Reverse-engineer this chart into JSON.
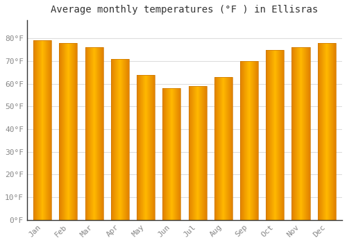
{
  "title": "Average monthly temperatures (°F ) in Ellisras",
  "months": [
    "Jan",
    "Feb",
    "Mar",
    "Apr",
    "May",
    "Jun",
    "Jul",
    "Aug",
    "Sep",
    "Oct",
    "Nov",
    "Dec"
  ],
  "values": [
    79,
    78,
    76,
    71,
    64,
    58,
    59,
    63,
    70,
    75,
    76,
    78
  ],
  "bar_color_center": "#FFB800",
  "bar_color_edge": "#E08000",
  "background_color": "#FFFFFF",
  "plot_bg_color": "#FFFFFF",
  "grid_color": "#DDDDDD",
  "ylim": [
    0,
    88
  ],
  "yticks": [
    0,
    10,
    20,
    30,
    40,
    50,
    60,
    70,
    80
  ],
  "ytick_labels": [
    "0°F",
    "10°F",
    "20°F",
    "30°F",
    "40°F",
    "50°F",
    "60°F",
    "70°F",
    "80°F"
  ],
  "title_fontsize": 10,
  "tick_fontsize": 8,
  "tick_color": "#888888",
  "font_family": "monospace",
  "bar_width": 0.7,
  "bar_outline_color": "#CC7700"
}
